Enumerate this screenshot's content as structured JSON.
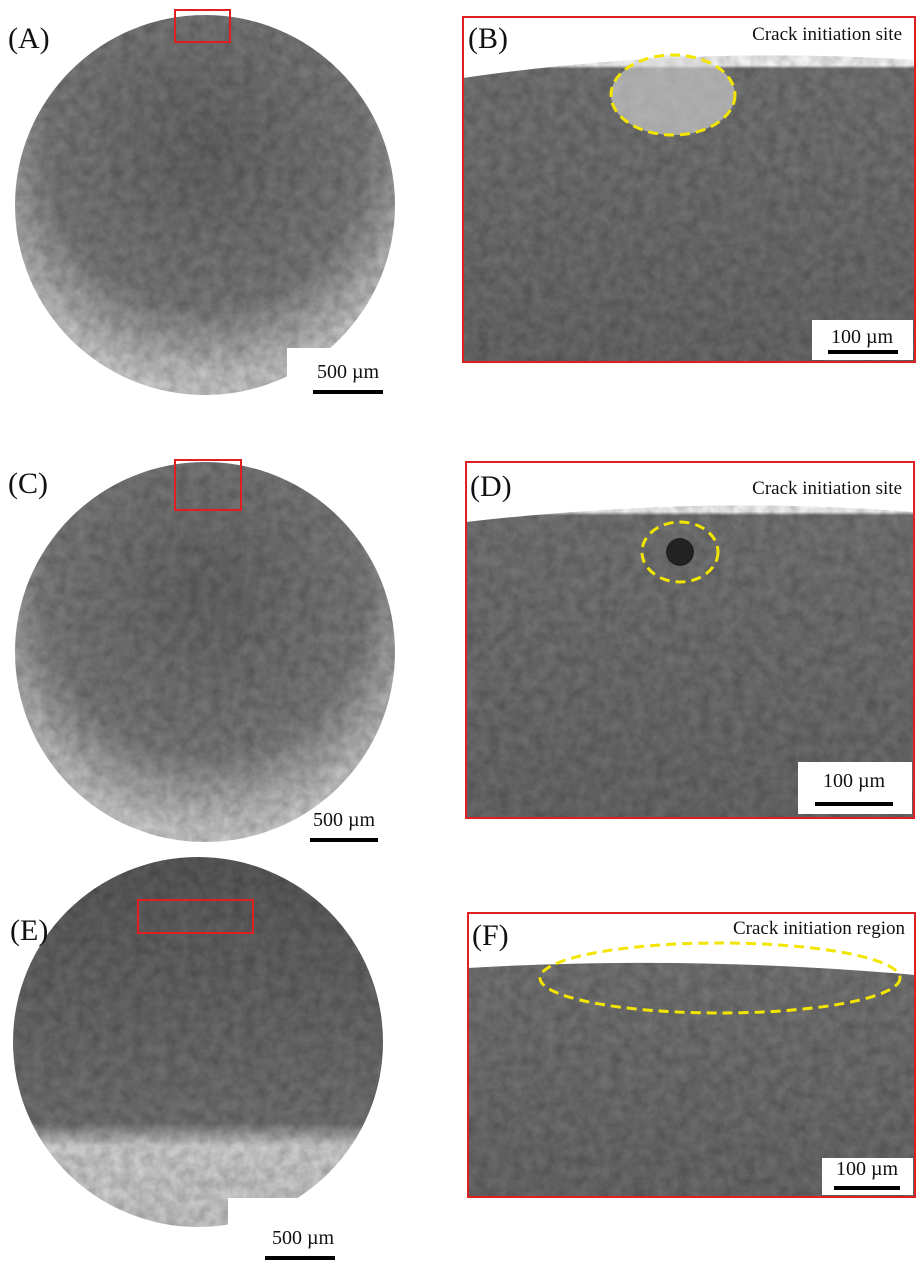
{
  "panels": [
    {
      "label": "(A)",
      "scale_bar": "500 µm"
    },
    {
      "label": "(B)",
      "caption": "Crack initiation site",
      "scale_bar": "100 µm"
    },
    {
      "label": "(C)",
      "scale_bar": "500 µm"
    },
    {
      "label": "(D)",
      "caption": "Crack initiation site",
      "scale_bar": "100 µm"
    },
    {
      "label": "(E)",
      "scale_bar": "500 µm"
    },
    {
      "label": "(F)",
      "caption": "Crack initiation region",
      "scale_bar": "100 µm"
    }
  ]
}
